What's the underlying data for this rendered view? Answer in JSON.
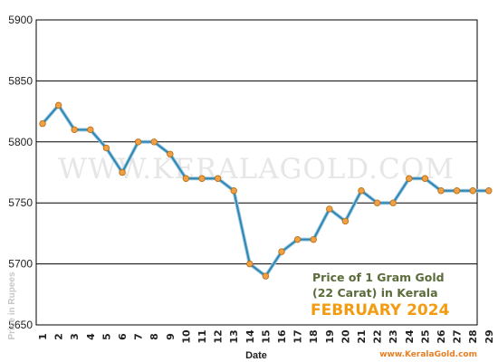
{
  "chart_data": {
    "type": "line",
    "x": [
      "1",
      "2",
      "3",
      "4",
      "5",
      "6",
      "7",
      "8",
      "9",
      "10",
      "11",
      "12",
      "13",
      "14",
      "15",
      "16",
      "17",
      "18",
      "19",
      "20",
      "21",
      "22",
      "23",
      "24",
      "25",
      "26",
      "27",
      "28",
      "29"
    ],
    "values": [
      5815,
      5830,
      5810,
      5810,
      5795,
      5775,
      5800,
      5800,
      5790,
      5770,
      5770,
      5770,
      5760,
      5700,
      5690,
      5710,
      5720,
      5720,
      5745,
      5735,
      5760,
      5750,
      5750,
      5770,
      5770,
      5760,
      5760,
      5760,
      5760
    ],
    "ylim": [
      5650,
      5900
    ],
    "yticks": [
      "5650",
      "5700",
      "5750",
      "5800",
      "5850",
      "5900"
    ],
    "xlabel": "Date",
    "ylabel": "Price in Rupees",
    "grid": true,
    "line_color": "#2e86b3",
    "marker_color": "#f0a044",
    "legend_lines": [
      "Price of 1 Gram Gold",
      "(22 Carat) in Kerala"
    ],
    "legend_month": "FEBRUARY 2024",
    "watermark": "WWW.KERALAGOLD.COM",
    "site": "www.KeralaGold.com"
  }
}
